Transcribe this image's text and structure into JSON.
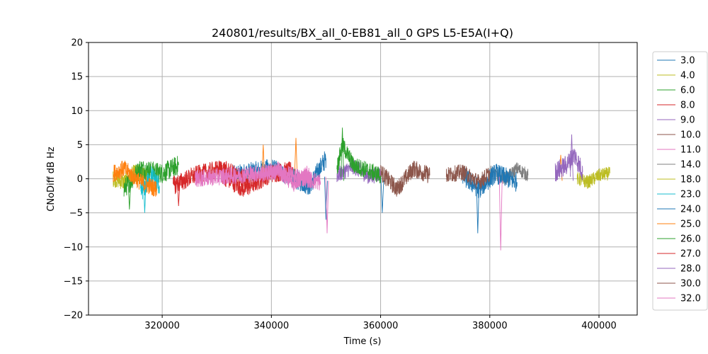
{
  "chart_data": {
    "type": "line",
    "title": "240801/results/BX_all_0-EB81_all_0 GPS L5-E5A(I+Q)",
    "xlabel": "Time (s)",
    "ylabel": "CNoDiff dB Hz",
    "xlim": [
      306500,
      407000
    ],
    "ylim": [
      -20,
      20
    ],
    "xticks": [
      320000,
      340000,
      360000,
      380000,
      400000
    ],
    "yticks": [
      -20,
      -15,
      -10,
      -5,
      0,
      5,
      10,
      15,
      20
    ],
    "grid": true,
    "legend_position": "right-outside",
    "series": [
      {
        "name": "3.0",
        "color": "#1f77b4",
        "x": [
          333000,
          340000,
          347000,
          350000
        ],
        "y": [
          0.5,
          1.5,
          -1.0,
          3.0
        ],
        "amp": 1.5,
        "spikes": [
          [
            350000,
            -6.0
          ]
        ]
      },
      {
        "name": "4.0",
        "color": "#bcbd22",
        "x": [
          311000,
          313000,
          315000,
          317500
        ],
        "y": [
          0.0,
          -0.5,
          1.0,
          0.3
        ],
        "amp": 1.2,
        "spikes": []
      },
      {
        "name": "6.0",
        "color": "#2ca02c",
        "x": [
          313000,
          316000,
          320000,
          323000
        ],
        "y": [
          -1.5,
          1.5,
          0.8,
          2.0
        ],
        "amp": 1.5,
        "spikes": [
          [
            314000,
            -4.5
          ]
        ]
      },
      {
        "name": "8.0",
        "color": "#d62728",
        "x": [
          331000,
          335000,
          340000,
          344000
        ],
        "y": [
          0.5,
          -1.5,
          0.8,
          1.2
        ],
        "amp": 1.4,
        "spikes": []
      },
      {
        "name": "9.0",
        "color": "#9467bd",
        "x": [
          352000,
          355000,
          358000,
          360000
        ],
        "y": [
          0.5,
          1.8,
          0.3,
          0.8
        ],
        "amp": 1.2,
        "spikes": []
      },
      {
        "name": "10.0",
        "color": "#8c564b",
        "x": [
          360000,
          363000,
          366000,
          369000
        ],
        "y": [
          1.0,
          -1.5,
          1.5,
          0.5
        ],
        "amp": 1.3,
        "spikes": []
      },
      {
        "name": "11.0",
        "color": "#e377c2",
        "x": [
          338000,
          341000,
          344000,
          347000
        ],
        "y": [
          0.5,
          1.5,
          -0.8,
          1.0
        ],
        "amp": 1.2,
        "spikes": []
      },
      {
        "name": "14.0",
        "color": "#7f7f7f",
        "x": [
          380000,
          383000,
          385000,
          387000
        ],
        "y": [
          1.0,
          0.0,
          1.5,
          0.5
        ],
        "amp": 1.0,
        "spikes": []
      },
      {
        "name": "18.0",
        "color": "#bcbd22",
        "x": [
          396000,
          398000,
          400000,
          402000
        ],
        "y": [
          0.0,
          -0.5,
          0.5,
          0.8
        ],
        "amp": 1.0,
        "spikes": []
      },
      {
        "name": "23.0",
        "color": "#17becf",
        "x": [
          316000,
          317000,
          318000,
          319500
        ],
        "y": [
          -2.0,
          -1.0,
          0.5,
          -1.0
        ],
        "amp": 1.5,
        "spikes": [
          [
            316800,
            -5.0
          ]
        ]
      },
      {
        "name": "24.0",
        "color": "#1f77b4",
        "x": [
          375000,
          378000,
          381000,
          385000
        ],
        "y": [
          0.5,
          -1.5,
          0.8,
          -0.5
        ],
        "amp": 1.5,
        "spikes": [
          [
            377800,
            -8.0
          ],
          [
            360300,
            -5.0
          ]
        ]
      },
      {
        "name": "25.0",
        "color": "#ff7f0e",
        "x": [
          311000,
          313000,
          316000,
          319000
        ],
        "y": [
          0.8,
          1.5,
          -0.5,
          -1.5
        ],
        "amp": 1.3,
        "spikes": [
          [
            338500,
            5.0
          ],
          [
            344500,
            6.0
          ],
          [
            393000,
            3.5
          ]
        ]
      },
      {
        "name": "26.0",
        "color": "#2ca02c",
        "x": [
          352000,
          353000,
          355000,
          360000
        ],
        "y": [
          1.5,
          5.0,
          2.0,
          0.5
        ],
        "amp": 1.3,
        "spikes": [
          [
            353000,
            7.5
          ]
        ]
      },
      {
        "name": "27.0",
        "color": "#d62728",
        "x": [
          322000,
          326000,
          331000,
          336000
        ],
        "y": [
          -1.0,
          0.5,
          1.5,
          -0.5
        ],
        "amp": 1.4,
        "spikes": [
          [
            323000,
            -4.0
          ]
        ]
      },
      {
        "name": "28.0",
        "color": "#9467bd",
        "x": [
          392000,
          394000,
          395500,
          397000
        ],
        "y": [
          1.0,
          2.0,
          3.5,
          1.0
        ],
        "amp": 1.5,
        "spikes": [
          [
            395000,
            6.5
          ]
        ]
      },
      {
        "name": "30.0",
        "color": "#8c564b",
        "x": [
          372000,
          375000,
          378000,
          380000
        ],
        "y": [
          0.5,
          1.0,
          -0.5,
          0.8
        ],
        "amp": 1.2,
        "spikes": []
      },
      {
        "name": "32.0",
        "color": "#e377c2",
        "x": [
          326000,
          333000,
          341000,
          349000
        ],
        "y": [
          0.0,
          0.5,
          1.0,
          -0.5
        ],
        "amp": 1.3,
        "spikes": [
          [
            350200,
            -8.0
          ],
          [
            382000,
            -10.5
          ]
        ]
      }
    ]
  }
}
